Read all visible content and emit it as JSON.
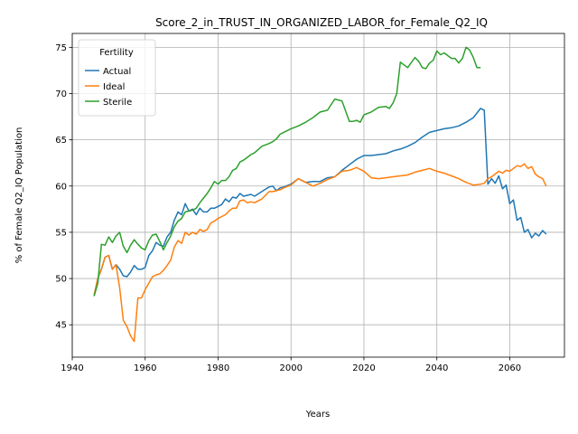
{
  "chart_data": {
    "type": "line",
    "title": "Score_2_in_TRUST_IN_ORGANIZED_LABOR_for_Female_Q2_IQ",
    "xlabel": "Years",
    "ylabel": "% of Female Q2_IQ Population",
    "xlim": [
      1940,
      2075
    ],
    "ylim": [
      41.5,
      76.5
    ],
    "xticks": [
      1940,
      1960,
      1980,
      2000,
      2020,
      2040,
      2060
    ],
    "yticks": [
      45,
      50,
      55,
      60,
      65,
      70,
      75
    ],
    "grid": true,
    "legend": {
      "title": "Fertility",
      "placement": "upper-left"
    },
    "series": [
      {
        "name": "Actual",
        "color": "#1f77b4",
        "x": [
          1946,
          1947,
          1948,
          1949,
          1950,
          1951,
          1952,
          1953,
          1954,
          1955,
          1956,
          1957,
          1958,
          1959,
          1960,
          1961,
          1962,
          1963,
          1964,
          1965,
          1966,
          1967,
          1968,
          1969,
          1970,
          1971,
          1972,
          1973,
          1974,
          1975,
          1976,
          1977,
          1978,
          1979,
          1980,
          1981,
          1982,
          1983,
          1984,
          1985,
          1986,
          1987,
          1988,
          1989,
          1990,
          1992,
          1994,
          1995,
          1996,
          1997,
          1998,
          2000,
          2002,
          2004,
          2006,
          2008,
          2010,
          2012,
          2014,
          2016,
          2018,
          2020,
          2022,
          2024,
          2026,
          2028,
          2030,
          2032,
          2034,
          2036,
          2038,
          2040,
          2042,
          2044,
          2046,
          2048,
          2050,
          2052,
          2053,
          2054,
          2055,
          2056,
          2057,
          2058,
          2059,
          2060,
          2061,
          2062,
          2063,
          2064,
          2065,
          2066,
          2067,
          2068,
          2069,
          2070
        ],
        "values": [
          48.2,
          50.0,
          51.0,
          52.3,
          52.5,
          51.0,
          51.5,
          51.0,
          50.3,
          50.2,
          50.7,
          51.4,
          51.0,
          51.0,
          51.2,
          52.5,
          53.0,
          53.9,
          53.6,
          53.5,
          54.5,
          55.0,
          56.3,
          57.2,
          56.9,
          58.1,
          57.3,
          57.5,
          56.9,
          57.6,
          57.2,
          57.2,
          57.6,
          57.6,
          57.8,
          58.0,
          58.6,
          58.3,
          58.8,
          58.7,
          59.2,
          58.9,
          59.0,
          59.1,
          58.9,
          59.4,
          59.9,
          60.0,
          59.5,
          59.8,
          59.9,
          60.2,
          60.8,
          60.4,
          60.5,
          60.5,
          60.9,
          61.0,
          61.7,
          62.3,
          62.9,
          63.3,
          63.3,
          63.4,
          63.5,
          63.8,
          64.0,
          64.3,
          64.7,
          65.3,
          65.8,
          66.0,
          66.2,
          66.3,
          66.5,
          66.9,
          67.4,
          68.4,
          68.2,
          60.2,
          60.8,
          60.3,
          61.1,
          59.7,
          60.1,
          58.1,
          58.5,
          56.3,
          56.6,
          55.0,
          55.3,
          54.4,
          54.9,
          54.6,
          55.2,
          54.8
        ]
      },
      {
        "name": "Ideal",
        "color": "#ff7f0e",
        "x": [
          1946,
          1947,
          1948,
          1949,
          1950,
          1951,
          1952,
          1953,
          1954,
          1955,
          1956,
          1957,
          1958,
          1959,
          1960,
          1961,
          1962,
          1963,
          1964,
          1965,
          1966,
          1967,
          1968,
          1969,
          1970,
          1971,
          1972,
          1973,
          1974,
          1975,
          1976,
          1977,
          1978,
          1979,
          1980,
          1981,
          1982,
          1983,
          1984,
          1985,
          1986,
          1987,
          1988,
          1989,
          1990,
          1992,
          1994,
          1995,
          1996,
          1997,
          1998,
          2000,
          2002,
          2004,
          2006,
          2008,
          2010,
          2012,
          2014,
          2016,
          2018,
          2020,
          2022,
          2024,
          2026,
          2028,
          2030,
          2032,
          2034,
          2036,
          2038,
          2040,
          2042,
          2044,
          2046,
          2048,
          2050,
          2052,
          2053,
          2054,
          2055,
          2056,
          2057,
          2058,
          2059,
          2060,
          2061,
          2062,
          2063,
          2064,
          2065,
          2066,
          2067,
          2068,
          2069,
          2070
        ],
        "values": [
          48.2,
          50.0,
          51.0,
          52.3,
          52.5,
          51.0,
          51.5,
          49.0,
          45.5,
          44.8,
          43.8,
          43.2,
          47.9,
          47.9,
          48.8,
          49.5,
          50.2,
          50.4,
          50.5,
          50.9,
          51.4,
          52.0,
          53.4,
          54.1,
          53.8,
          55.0,
          54.7,
          55.0,
          54.8,
          55.3,
          55.1,
          55.3,
          56.0,
          56.2,
          56.5,
          56.7,
          56.9,
          57.3,
          57.6,
          57.6,
          58.4,
          58.5,
          58.2,
          58.3,
          58.2,
          58.6,
          59.4,
          59.4,
          59.5,
          59.6,
          59.8,
          60.1,
          60.8,
          60.4,
          60.0,
          60.3,
          60.7,
          61.0,
          61.6,
          61.7,
          62.0,
          61.6,
          60.9,
          60.8,
          60.9,
          61.0,
          61.1,
          61.2,
          61.5,
          61.7,
          61.9,
          61.6,
          61.4,
          61.1,
          60.8,
          60.4,
          60.1,
          60.2,
          60.3,
          60.8,
          61.0,
          61.3,
          61.6,
          61.4,
          61.7,
          61.6,
          61.9,
          62.2,
          62.1,
          62.4,
          61.9,
          62.1,
          61.3,
          61.0,
          60.8,
          60.0
        ]
      },
      {
        "name": "Sterile",
        "color": "#2ca02c",
        "x": [
          1946,
          1947,
          1948,
          1949,
          1950,
          1951,
          1952,
          1953,
          1954,
          1955,
          1956,
          1957,
          1958,
          1959,
          1960,
          1961,
          1962,
          1963,
          1964,
          1965,
          1966,
          1967,
          1968,
          1969,
          1970,
          1971,
          1972,
          1973,
          1974,
          1975,
          1976,
          1977,
          1978,
          1979,
          1980,
          1981,
          1982,
          1983,
          1984,
          1985,
          1986,
          1987,
          1988,
          1989,
          1990,
          1992,
          1994,
          1995,
          1996,
          1997,
          1998,
          2000,
          2002,
          2004,
          2006,
          2008,
          2010,
          2012,
          2013,
          2014,
          2016,
          2017,
          2018,
          2019,
          2020,
          2022,
          2024,
          2026,
          2027,
          2028,
          2029,
          2030,
          2032,
          2034,
          2035,
          2036,
          2037,
          2038,
          2039,
          2040,
          2041,
          2042,
          2043,
          2044,
          2045,
          2046,
          2047,
          2048,
          2049,
          2050,
          2051,
          2052
        ],
        "values": [
          48.1,
          49.5,
          53.7,
          53.6,
          54.5,
          53.9,
          54.6,
          55.0,
          53.5,
          52.8,
          53.6,
          54.2,
          53.7,
          53.3,
          53.1,
          54.1,
          54.7,
          54.8,
          54.0,
          53.1,
          53.9,
          54.6,
          55.6,
          56.2,
          56.5,
          57.2,
          57.3,
          57.4,
          57.6,
          58.2,
          58.7,
          59.2,
          59.8,
          60.5,
          60.2,
          60.6,
          60.6,
          61.0,
          61.7,
          61.9,
          62.6,
          62.8,
          63.1,
          63.4,
          63.6,
          64.3,
          64.6,
          64.8,
          65.1,
          65.6,
          65.8,
          66.2,
          66.5,
          66.9,
          67.4,
          68.0,
          68.2,
          69.4,
          69.3,
          69.2,
          67.0,
          67.0,
          67.1,
          66.9,
          67.7,
          68.0,
          68.5,
          68.6,
          68.4,
          69.0,
          70.0,
          73.4,
          72.8,
          73.9,
          73.5,
          72.8,
          72.7,
          73.3,
          73.6,
          74.6,
          74.2,
          74.4,
          74.1,
          73.8,
          73.8,
          73.3,
          73.8,
          75.0,
          74.7,
          73.9,
          72.8,
          72.8
        ]
      }
    ]
  }
}
